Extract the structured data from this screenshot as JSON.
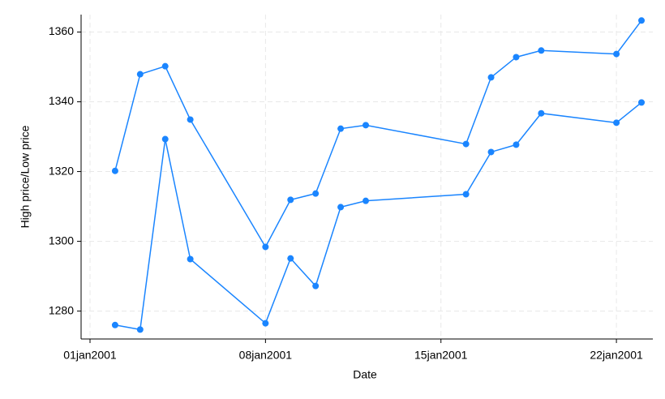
{
  "chart_data": {
    "type": "line",
    "xlabel": "Date",
    "ylabel": "High price/Low price",
    "x": [
      "02jan2001",
      "03jan2001",
      "04jan2001",
      "05jan2001",
      "08jan2001",
      "09jan2001",
      "10jan2001",
      "11jan2001",
      "12jan2001",
      "16jan2001",
      "17jan2001",
      "18jan2001",
      "19jan2001",
      "22jan2001",
      "23jan2001"
    ],
    "series": [
      {
        "color": "#1a85ff",
        "values": [
          1320.2,
          1347.9,
          1350.2,
          1334.9,
          1298.4,
          1311.9,
          1313.7,
          1332.3,
          1333.3,
          1327.9,
          1347.0,
          1352.8,
          1354.7,
          1353.7,
          1363.3
        ]
      },
      {
        "color": "#1a85ff",
        "values": [
          1276.0,
          1274.7,
          1329.3,
          1294.9,
          1276.5,
          1295.1,
          1287.2,
          1309.8,
          1311.6,
          1313.5,
          1325.6,
          1327.7,
          1336.7,
          1334.0,
          1339.8
        ]
      }
    ],
    "xlim": [
      "01jan2001",
      "23jan2001"
    ],
    "xticks": [
      "01jan2001",
      "08jan2001",
      "15jan2001",
      "22jan2001"
    ],
    "ylim": [
      1272,
      1365
    ],
    "yticks": [
      1280,
      1300,
      1320,
      1340,
      1360
    ],
    "grid": true
  }
}
